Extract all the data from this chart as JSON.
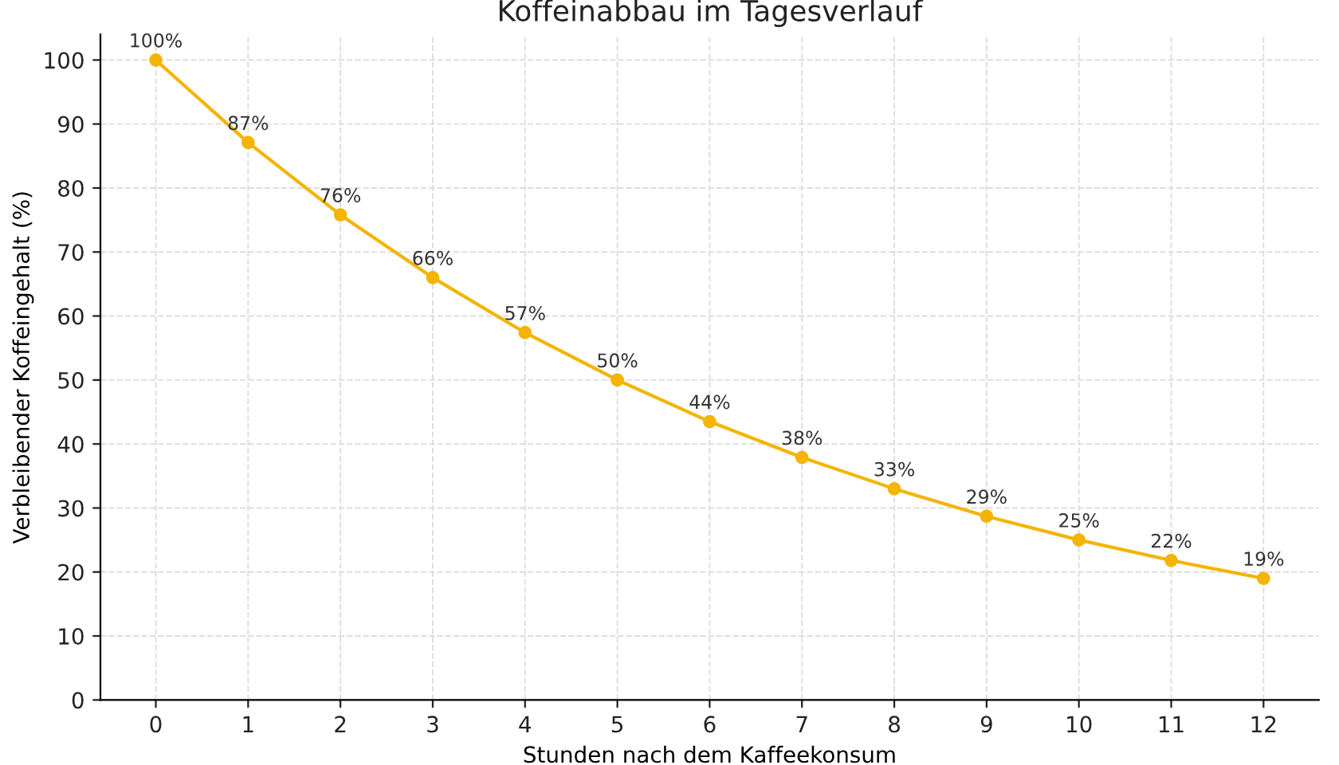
{
  "chart_data": {
    "type": "line",
    "title": "Koffeinabbau im Tagesverlauf",
    "xlabel": "Stunden nach dem Kaffeekonsum",
    "ylabel": "Verbleibender Koffeingehalt (%)",
    "x": [
      0,
      1,
      2,
      3,
      4,
      5,
      6,
      7,
      8,
      9,
      10,
      11,
      12
    ],
    "series": [
      {
        "color": "#f4b400",
        "values": [
          100,
          87.1,
          75.8,
          66,
          57.4,
          50,
          43.5,
          37.9,
          33,
          28.7,
          25,
          21.8,
          19
        ],
        "value_labels": [
          "100%",
          "87%",
          "76%",
          "66%",
          "57%",
          "50%",
          "44%",
          "38%",
          "33%",
          "29%",
          "25%",
          "22%",
          "19%"
        ]
      }
    ],
    "xlim": [
      -0.6,
      12.6
    ],
    "xticks": [
      0,
      1,
      2,
      3,
      4,
      5,
      6,
      7,
      8,
      9,
      10,
      11,
      12
    ],
    "ylim": [
      0,
      104
    ],
    "yticks": [
      0,
      10,
      20,
      30,
      40,
      50,
      60,
      70,
      80,
      90,
      100
    ],
    "grid": true,
    "marker": "circle",
    "line_style": "solid"
  }
}
